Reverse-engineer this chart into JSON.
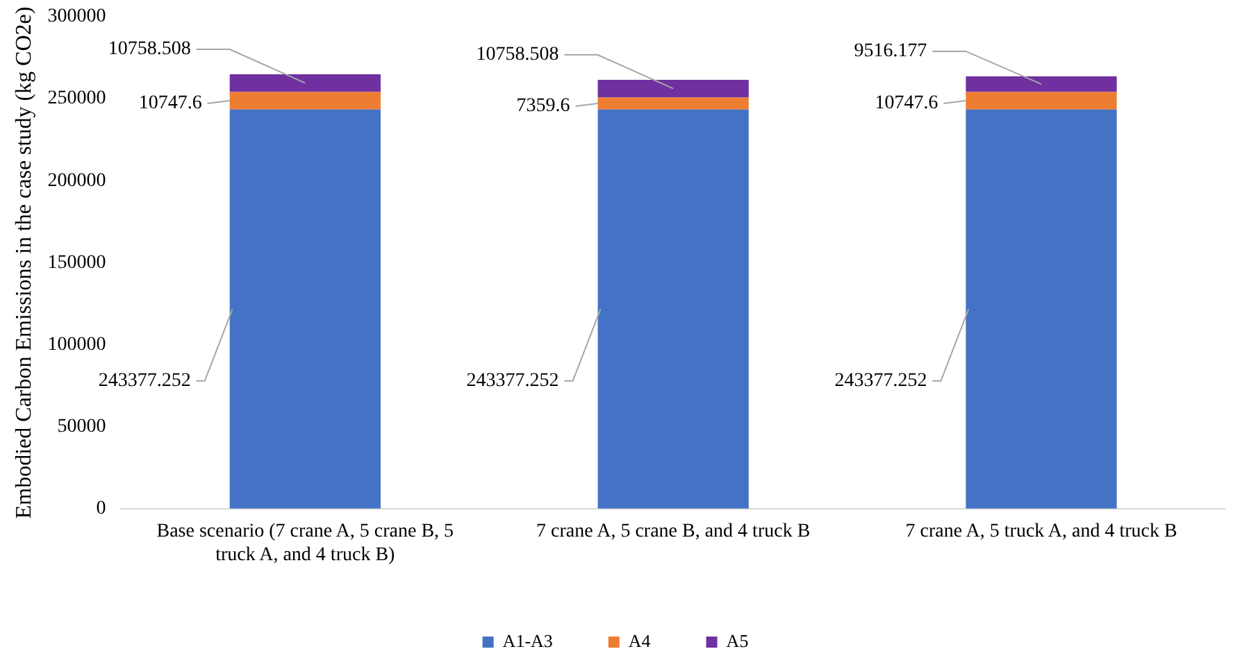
{
  "chart_data": {
    "type": "bar",
    "stacked": true,
    "ylabel": "Embodied Carbon Emissions in the case study (kg CO2e)",
    "categories": [
      "Base scenario (7 crane A, 5 crane B, 5 truck A, and 4 truck B)",
      "7 crane A, 5 crane B, and 4 truck B",
      "7 crane A, 5 truck A, and 4 truck B"
    ],
    "series": [
      {
        "name": "A1-A3",
        "color": "#4472c4",
        "values": [
          243377.252,
          243377.252,
          243377.252
        ]
      },
      {
        "name": "A4",
        "color": "#ed7d31",
        "values": [
          10747.6,
          7359.6,
          10747.6
        ]
      },
      {
        "name": "A5",
        "color": "#7030a0",
        "values": [
          10758.508,
          10758.508,
          9516.177
        ]
      }
    ],
    "ylim": [
      0,
      300000
    ],
    "yticks": [
      0,
      50000,
      100000,
      150000,
      200000,
      250000,
      300000
    ],
    "grid": false,
    "legend": "bottom",
    "data_labels": true
  }
}
